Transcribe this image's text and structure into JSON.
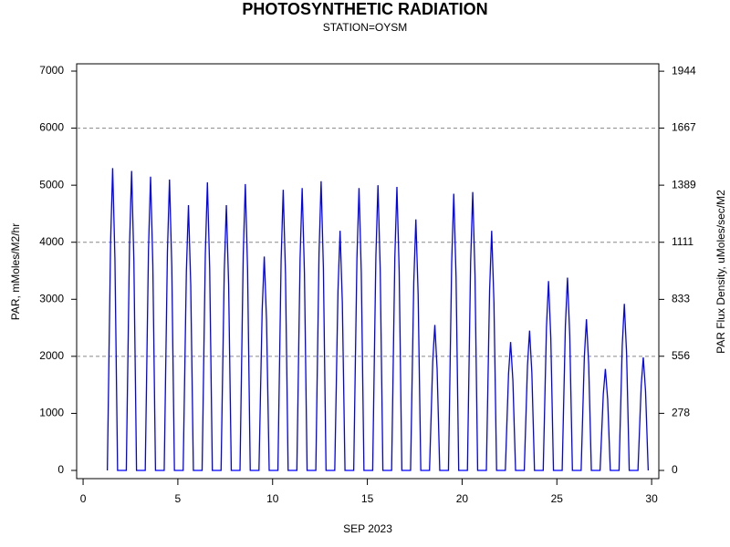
{
  "chart_data": {
    "type": "line",
    "title": "PHOTOSYNTHETIC RADIATION",
    "subtitle": "STATION=OYSM",
    "x_label": "SEP 2023",
    "y_label": "PAR, mMoles/M2/hr",
    "y2_label": "PAR Flux Density, uMoles/sec/M2",
    "color": "#0000ff",
    "grid": true,
    "xlim": [
      -0.34,
      30.38
    ],
    "xticks": [
      0,
      5,
      10,
      15,
      20,
      25,
      30
    ],
    "ylim": [
      -144,
      7128
    ],
    "yticks": [
      0,
      1000,
      2000,
      3000,
      4000,
      5000,
      6000,
      7000
    ],
    "y2lim": [
      -40,
      1980
    ],
    "y2ticks": [
      0,
      278,
      556,
      833,
      1111,
      1389,
      1667,
      1944
    ],
    "x": [
      1.28,
      1.45,
      1.56,
      1.68,
      1.82,
      2.28,
      2.45,
      2.56,
      2.68,
      2.82,
      3.28,
      3.45,
      3.56,
      3.68,
      3.82,
      4.28,
      4.45,
      4.56,
      4.68,
      4.82,
      5.28,
      5.45,
      5.56,
      5.68,
      5.82,
      6.28,
      6.45,
      6.56,
      6.68,
      6.82,
      7.28,
      7.45,
      7.56,
      7.68,
      7.82,
      8.28,
      8.45,
      8.56,
      8.68,
      8.82,
      9.28,
      9.45,
      9.56,
      9.68,
      9.82,
      10.28,
      10.45,
      10.56,
      10.68,
      10.82,
      11.28,
      11.45,
      11.56,
      11.68,
      11.82,
      12.28,
      12.45,
      12.56,
      12.68,
      12.82,
      13.28,
      13.45,
      13.56,
      13.68,
      13.82,
      14.28,
      14.45,
      14.56,
      14.68,
      14.82,
      15.28,
      15.45,
      15.56,
      15.68,
      15.82,
      16.28,
      16.45,
      16.56,
      16.68,
      16.82,
      17.28,
      17.45,
      17.56,
      17.68,
      17.82,
      18.28,
      18.45,
      18.56,
      18.68,
      18.82,
      19.28,
      19.45,
      19.56,
      19.68,
      19.82,
      20.28,
      20.45,
      20.56,
      20.68,
      20.82,
      21.28,
      21.45,
      21.56,
      21.68,
      21.82,
      22.28,
      22.45,
      22.56,
      22.68,
      22.82,
      23.28,
      23.45,
      23.56,
      23.68,
      23.82,
      24.28,
      24.45,
      24.56,
      24.68,
      24.82,
      25.28,
      25.45,
      25.56,
      25.68,
      25.82,
      26.28,
      26.45,
      26.56,
      26.68,
      26.82,
      27.28,
      27.45,
      27.56,
      27.68,
      27.82,
      28.28,
      28.45,
      28.56,
      28.68,
      28.82,
      29.28,
      29.45,
      29.56,
      29.68,
      29.82
    ],
    "values": [
      0,
      3975,
      5300,
      3710,
      0,
      0,
      3940,
      5250,
      3675,
      0,
      0,
      3860,
      5150,
      3605,
      0,
      0,
      3825,
      5100,
      3570,
      0,
      0,
      3490,
      4650,
      3255,
      0,
      0,
      3790,
      5050,
      3535,
      0,
      0,
      3490,
      4650,
      3255,
      0,
      0,
      3765,
      5020,
      3515,
      0,
      0,
      2810,
      3750,
      2625,
      0,
      0,
      3690,
      4920,
      3445,
      0,
      0,
      3710,
      4950,
      3465,
      0,
      0,
      3800,
      5070,
      3550,
      0,
      0,
      3150,
      4200,
      2940,
      0,
      0,
      3710,
      4950,
      3465,
      0,
      0,
      3750,
      5000,
      3500,
      0,
      0,
      3730,
      4970,
      3480,
      0,
      0,
      3300,
      4400,
      3080,
      0,
      0,
      1910,
      2550,
      1785,
      0,
      0,
      3640,
      4850,
      3395,
      0,
      0,
      3660,
      4880,
      3415,
      0,
      0,
      3150,
      4200,
      2940,
      0,
      0,
      1690,
      2250,
      1575,
      0,
      0,
      1840,
      2450,
      1715,
      0,
      0,
      2490,
      3320,
      2325,
      0,
      0,
      2535,
      3380,
      2365,
      0,
      0,
      1990,
      2650,
      1855,
      0,
      0,
      1335,
      1780,
      1245,
      0,
      0,
      2190,
      2920,
      2045,
      0,
      0,
      1485,
      1980,
      1385,
      0
    ]
  }
}
